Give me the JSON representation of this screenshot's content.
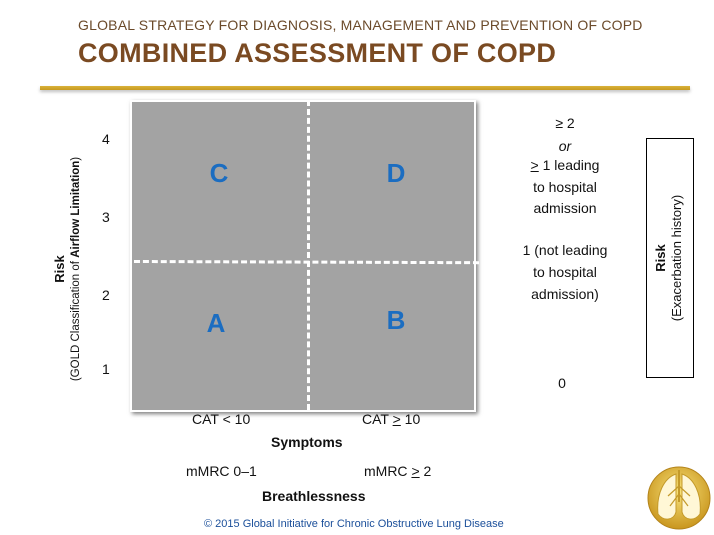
{
  "header": {
    "subtitle": "GLOBAL STRATEGY FOR DIAGNOSIS, MANAGEMENT AND PREVENTION OF COPD",
    "title": "COMBINED ASSESSMENT OF COPD"
  },
  "quadrants": {
    "C": "C",
    "D": "D",
    "A": "A",
    "B": "B"
  },
  "y_axis": {
    "ticks": [
      "4",
      "3",
      "2",
      "1"
    ],
    "label_main": "Risk",
    "label_sub_pre": "(GOLD Classification of ",
    "label_sub_bold": "Airflow Limitation",
    "label_sub_post": ")"
  },
  "x_axis": {
    "cat_left": "CAT < 10",
    "cat_right_pre": "CAT ",
    "cat_right_sym": ">",
    "cat_right_post": " 10",
    "symptoms": "Symptoms",
    "mmrc_left": "mMRC  0–1",
    "mmrc_right_pre": "mMRC ",
    "mmrc_right_sym": ">",
    "mmrc_right_post": " 2",
    "breathlessness": "Breathlessness"
  },
  "right_labels": {
    "line1": "≥ 2",
    "line2": "or",
    "line3_sym": ">",
    "line3_rest": " 1  leading",
    "line4": "to  hospital",
    "line5": "admission",
    "line6": "1 (not leading",
    "line7": "to hospital",
    "line8": "admission)",
    "line9": "0"
  },
  "risk_box": {
    "main": "Risk",
    "sub": "(Exacerbation history)"
  },
  "footer": {
    "copyright": "© 2015  Global Initiative for Chronic Obstructive Lung Disease"
  },
  "colors": {
    "title": "#7a4a22",
    "accent_rule": "#d9b23a",
    "grid_fill": "#a3a3a3",
    "quadrant_letters": "#1b6dc1",
    "copyright": "#1b4f9a"
  },
  "logo": {
    "icon": "gold-lungs-logo-icon"
  }
}
